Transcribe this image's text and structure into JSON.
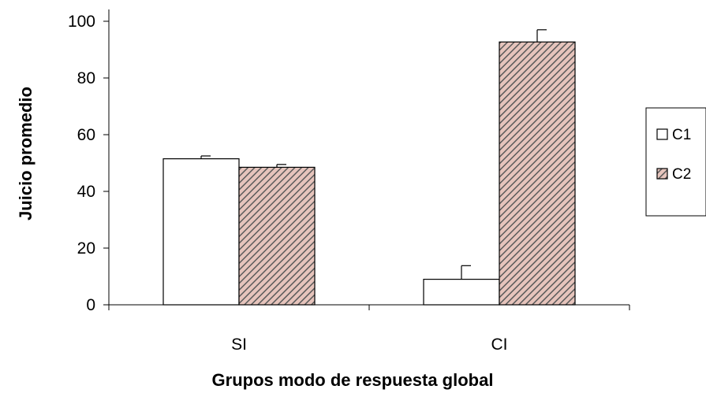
{
  "chart_data": {
    "type": "bar",
    "title": "",
    "xlabel": "Grupos modo de respuesta global",
    "ylabel": "Juicio promedio",
    "categories": [
      "SI",
      "CI"
    ],
    "series": [
      {
        "name": "C1",
        "values": [
          51.5,
          9.0
        ],
        "errors": [
          1.0,
          4.8
        ],
        "fill": "#ffffff",
        "pattern": "none"
      },
      {
        "name": "C2",
        "values": [
          48.5,
          92.7
        ],
        "errors": [
          1.0,
          4.3
        ],
        "fill": "#d9b8b0",
        "pattern": "diagonal-stripes"
      }
    ],
    "ylim": [
      0,
      100
    ],
    "yticks": [
      0,
      20,
      40,
      60,
      80,
      100
    ],
    "grid": false,
    "legend_position": "right",
    "colors": {
      "stripe": "#555555",
      "stripe_bg": "#e8c8c0",
      "axis": "#000000"
    }
  }
}
